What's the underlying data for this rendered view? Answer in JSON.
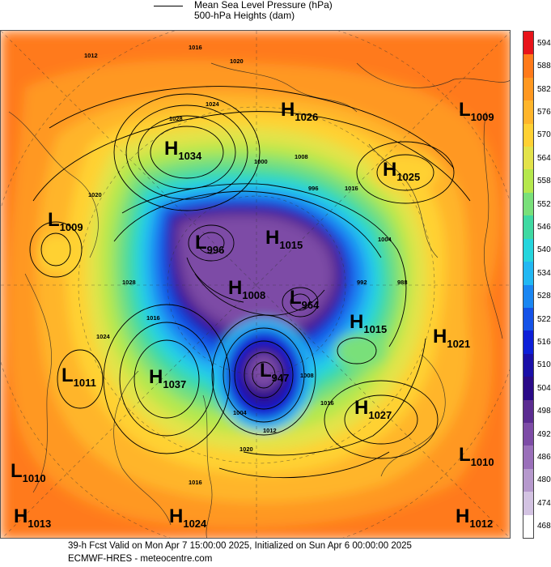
{
  "legend": {
    "line1": "Mean Sea Level Pressure (hPa)",
    "line2": "500-hPa Heights (dam)"
  },
  "colorbar": {
    "levels": [
      "594",
      "588",
      "582",
      "576",
      "570",
      "564",
      "558",
      "552",
      "546",
      "540",
      "534",
      "528",
      "522",
      "516",
      "510",
      "504",
      "498",
      "492",
      "486",
      "480",
      "474",
      "468"
    ],
    "colors": [
      "#e8141a",
      "#ff7a1a",
      "#ff9820",
      "#ffb52a",
      "#ffd133",
      "#e3e34a",
      "#b5e84d",
      "#79e07a",
      "#3fd9a2",
      "#25d5dd",
      "#22b8f3",
      "#1a86f2",
      "#1452e8",
      "#0d1fd8",
      "#1a0fa8",
      "#2a0a88",
      "#5b2c91",
      "#7d4ca6",
      "#9a70ba",
      "#b699cd",
      "#d3c3e2",
      "#ffffff"
    ]
  },
  "pressure_centers": [
    {
      "type": "H",
      "value": "1026"
    },
    {
      "type": "L",
      "value": "1009"
    },
    {
      "type": "H",
      "value": "1034"
    },
    {
      "type": "H",
      "value": "1025"
    },
    {
      "type": "L",
      "value": "1009"
    },
    {
      "type": "L",
      "value": "996"
    },
    {
      "type": "H",
      "value": "1015"
    },
    {
      "type": "H",
      "value": "1008"
    },
    {
      "type": "L",
      "value": "964"
    },
    {
      "type": "H",
      "value": "1015"
    },
    {
      "type": "H",
      "value": "1021"
    },
    {
      "type": "L",
      "value": "1011"
    },
    {
      "type": "H",
      "value": "1037"
    },
    {
      "type": "L",
      "value": "947"
    },
    {
      "type": "H",
      "value": "1027"
    },
    {
      "type": "L",
      "value": "1010"
    },
    {
      "type": "L",
      "value": "1010"
    },
    {
      "type": "H",
      "value": "1013"
    },
    {
      "type": "H",
      "value": "1024"
    },
    {
      "type": "H",
      "value": "1012"
    }
  ],
  "isobar_labels": [
    "1012",
    "1016",
    "1020",
    "1024",
    "1028",
    "1000",
    "1008",
    "996",
    "992",
    "1004",
    "988",
    "1016",
    "1020",
    "1028",
    "1024",
    "1016",
    "1012",
    "1004",
    "1008",
    "1016",
    "1020",
    "1016"
  ],
  "footer": {
    "line1": "39-h Fcst Valid on Mon Apr  7 15:00:00 2025, Initialized on Sun Apr  6 00:00:00 2025",
    "line2": "ECMWF-HRES  - meteocentre.com"
  }
}
